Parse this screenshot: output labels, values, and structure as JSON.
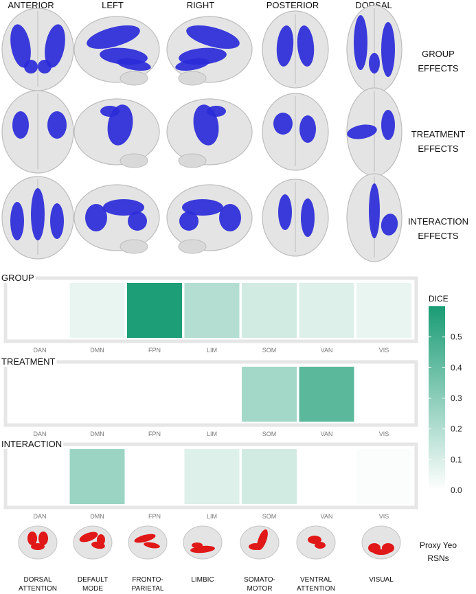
{
  "views": [
    "ANTERIOR",
    "LEFT",
    "RIGHT",
    "POSTERIOR",
    "DORSAL"
  ],
  "effect_rows": [
    {
      "line1": "GROUP",
      "line2": "EFFECTS"
    },
    {
      "line1": "TREATMENT",
      "line2": "EFFECTS"
    },
    {
      "line1": "INTERACTION",
      "line2": "EFFECTS"
    }
  ],
  "colors": {
    "blob": "#2b2bd9",
    "rsn_blob": "#e01818",
    "brain": "#e4e4e4",
    "panel_border": "#e6e6e6",
    "dice_low": "#ffffff",
    "dice_high": "#1a9c74"
  },
  "chart_data": {
    "type": "heatmap",
    "categories": [
      "DAN",
      "DMN",
      "FPN",
      "LIM",
      "SOM",
      "VAN",
      "VIS"
    ],
    "panels": [
      {
        "title": "GROUP",
        "values": [
          null,
          0.06,
          0.59,
          0.2,
          0.12,
          0.09,
          0.06
        ]
      },
      {
        "title": "TREATMENT",
        "values": [
          null,
          null,
          null,
          null,
          0.24,
          0.43,
          null
        ]
      },
      {
        "title": "INTERACTION",
        "values": [
          null,
          0.26,
          null,
          0.09,
          0.12,
          null,
          0.01
        ]
      }
    ],
    "legend": {
      "title": "DICE",
      "ticks": [
        "0.5",
        "0.4",
        "0.3",
        "0.2",
        "0.1",
        "0.0"
      ],
      "range": [
        0,
        0.6
      ]
    }
  },
  "rsn": {
    "caption_line1": "Proxy Yeo",
    "caption_line2": "RSNs",
    "networks": [
      {
        "line1": "DORSAL",
        "line2": "ATTENTION",
        "icon": "dorsal-attention-brain-icon"
      },
      {
        "line1": "DEFAULT",
        "line2": "MODE",
        "icon": "default-mode-brain-icon"
      },
      {
        "line1": "FRONTO-",
        "line2": "PARIETAL",
        "icon": "fronto-parietal-brain-icon"
      },
      {
        "line1": "LIMBIC",
        "line2": "",
        "icon": "limbic-brain-icon"
      },
      {
        "line1": "SOMATO-",
        "line2": "MOTOR",
        "icon": "somato-motor-brain-icon"
      },
      {
        "line1": "VENTRAL",
        "line2": "ATTENTION",
        "icon": "ventral-attention-brain-icon"
      },
      {
        "line1": "VISUAL",
        "line2": "",
        "icon": "visual-brain-icon"
      }
    ]
  }
}
